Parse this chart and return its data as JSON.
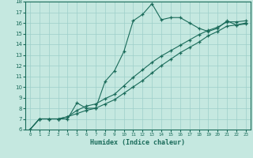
{
  "title": "",
  "xlabel": "Humidex (Indice chaleur)",
  "ylabel": "",
  "bg_color": "#c5e8e0",
  "line_color": "#1a6b5a",
  "grid_color": "#9dcfca",
  "xlim": [
    -0.5,
    23.5
  ],
  "ylim": [
    6,
    18
  ],
  "xticks": [
    0,
    1,
    2,
    3,
    4,
    5,
    6,
    7,
    8,
    9,
    10,
    11,
    12,
    13,
    14,
    15,
    16,
    17,
    18,
    19,
    20,
    21,
    22,
    23
  ],
  "yticks": [
    6,
    7,
    8,
    9,
    10,
    11,
    12,
    13,
    14,
    15,
    16,
    17,
    18
  ],
  "curve1_x": [
    0,
    1,
    2,
    3,
    4,
    5,
    6,
    7,
    8,
    9,
    10,
    11,
    12,
    13,
    14,
    15,
    16,
    17,
    18,
    19,
    20,
    21,
    22,
    23
  ],
  "curve1_y": [
    6.0,
    7.0,
    7.0,
    7.0,
    7.0,
    8.5,
    8.0,
    8.0,
    10.5,
    11.5,
    13.3,
    16.2,
    16.8,
    17.8,
    16.3,
    16.5,
    16.5,
    16.0,
    15.5,
    15.2,
    15.5,
    16.2,
    15.8,
    15.9
  ],
  "curve2_x": [
    0,
    1,
    2,
    3,
    4,
    5,
    6,
    7,
    8,
    9,
    10,
    11,
    12,
    13,
    14,
    15,
    16,
    17,
    18,
    19,
    20,
    21,
    22,
    23
  ],
  "curve2_y": [
    6.0,
    7.0,
    7.0,
    7.0,
    7.2,
    7.5,
    7.8,
    8.0,
    8.4,
    8.8,
    9.4,
    10.0,
    10.6,
    11.3,
    12.0,
    12.6,
    13.2,
    13.7,
    14.2,
    14.8,
    15.2,
    15.7,
    15.8,
    16.0
  ],
  "curve3_x": [
    0,
    1,
    2,
    3,
    4,
    5,
    6,
    7,
    8,
    9,
    10,
    11,
    12,
    13,
    14,
    15,
    16,
    17,
    18,
    19,
    20,
    21,
    22,
    23
  ],
  "curve3_y": [
    6.0,
    7.0,
    7.0,
    7.0,
    7.2,
    7.8,
    8.2,
    8.4,
    8.9,
    9.3,
    10.1,
    10.9,
    11.6,
    12.3,
    12.9,
    13.4,
    13.9,
    14.4,
    14.9,
    15.3,
    15.6,
    16.1,
    16.1,
    16.2
  ]
}
